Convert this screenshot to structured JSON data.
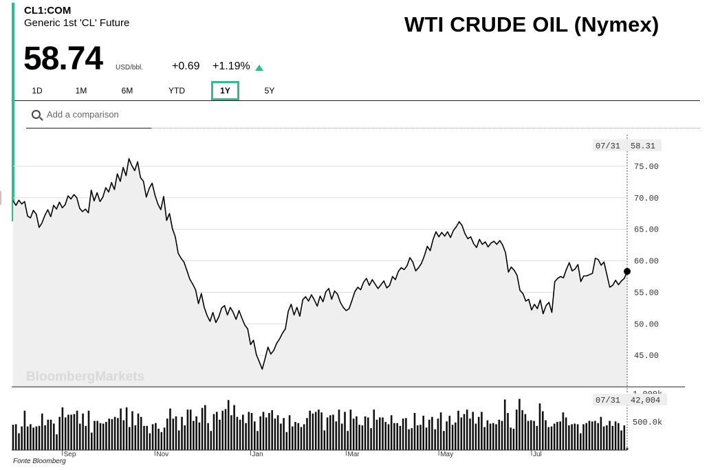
{
  "header": {
    "ticker": "CL1:COM",
    "name": "Generic 1st 'CL' Future",
    "headline": "WTI CRUDE OIL (Nymex)",
    "price": "58.74",
    "unit": "USD/bbl.",
    "change": "+0.69",
    "change_pct": "+1.19%",
    "direction_icon": "up-triangle-icon"
  },
  "tabs": [
    {
      "label": "1D",
      "active": false
    },
    {
      "label": "1M",
      "active": false
    },
    {
      "label": "6M",
      "active": false
    },
    {
      "label": "YTD",
      "active": false
    },
    {
      "label": "1Y",
      "active": true
    },
    {
      "label": "5Y",
      "active": false
    }
  ],
  "search": {
    "placeholder": "Add a comparison",
    "icon": "search-icon"
  },
  "watermark": "BloombergMarkets",
  "footer": "Fonte Bloomberg",
  "colors": {
    "accent": "#2ebd8f",
    "line": "#000000",
    "area": "#efefef",
    "grid": "#dddddd"
  },
  "chart_data": {
    "type": "line",
    "price": {
      "last_date": "07/31",
      "last_value": "58.31",
      "y_ticks": [
        "75.00",
        "70.00",
        "65.00",
        "60.00",
        "55.00",
        "50.00",
        "45.00"
      ],
      "ylim": [
        40,
        80
      ],
      "values": [
        69.5,
        68.8,
        69.6,
        69.0,
        69.4,
        67.1,
        66.8,
        68.0,
        67.4,
        65.3,
        66.0,
        67.2,
        68.1,
        67.0,
        68.8,
        68.2,
        69.3,
        68.4,
        68.9,
        70.3,
        69.8,
        70.5,
        70.0,
        68.3,
        67.8,
        68.2,
        67.6,
        71.2,
        69.5,
        70.8,
        69.4,
        70.1,
        71.6,
        70.9,
        72.4,
        71.3,
        73.8,
        72.6,
        74.8,
        73.5,
        76.2,
        75.1,
        74.3,
        75.7,
        73.2,
        72.6,
        70.1,
        71.5,
        72.3,
        70.4,
        69.0,
        68.1,
        70.2,
        66.4,
        67.5,
        65.1,
        63.8,
        61.2,
        60.4,
        59.8,
        58.5,
        57.1,
        56.3,
        55.4,
        53.2,
        54.8,
        52.6,
        51.3,
        50.4,
        51.8,
        50.2,
        51.1,
        52.5,
        52.9,
        51.4,
        52.6,
        51.8,
        50.7,
        52.1,
        50.9,
        49.8,
        49.2,
        46.7,
        47.4,
        45.1,
        44.0,
        42.8,
        44.5,
        46.3,
        45.2,
        45.8,
        46.9,
        47.6,
        48.5,
        49.2,
        52.0,
        53.1,
        51.4,
        52.6,
        51.2,
        53.8,
        54.3,
        53.6,
        54.6,
        53.8,
        52.8,
        54.4,
        53.5,
        55.1,
        55.6,
        53.9,
        55.2,
        54.7,
        53.4,
        52.6,
        52.1,
        52.4,
        53.7,
        55.1,
        55.8,
        55.4,
        56.6,
        57.2,
        56.1,
        57.0,
        56.3,
        55.6,
        56.2,
        56.8,
        55.7,
        56.1,
        57.5,
        57.0,
        58.3,
        58.9,
        58.6,
        59.2,
        60.5,
        59.8,
        58.4,
        58.9,
        59.6,
        60.8,
        62.3,
        61.6,
        63.4,
        64.6,
        63.8,
        64.5,
        63.9,
        64.6,
        63.7,
        64.8,
        65.4,
        66.2,
        65.6,
        64.3,
        63.5,
        63.8,
        62.7,
        62.1,
        63.4,
        62.6,
        63.0,
        62.2,
        62.8,
        63.1,
        62.6,
        63.2,
        62.5,
        61.3,
        58.2,
        59.0,
        58.5,
        57.7,
        55.3,
        54.8,
        53.6,
        53.9,
        52.2,
        53.1,
        52.4,
        53.8,
        51.6,
        52.9,
        53.4,
        51.8,
        56.7,
        57.2,
        57.5,
        57.3,
        58.6,
        59.7,
        58.4,
        58.7,
        59.4,
        56.7,
        57.6,
        57.6,
        57.8,
        58.0,
        60.4,
        60.2,
        59.3,
        59.8,
        57.8,
        55.8,
        56.1,
        56.9,
        56.2,
        56.8,
        57.2,
        58.31
      ],
      "title": "",
      "xlabel": "",
      "ylabel": ""
    },
    "volume": {
      "last_date": "07/31",
      "last_value": "42,004",
      "y_ticks": [
        "1,000k",
        "500.0k"
      ],
      "ylim": [
        0,
        1100000
      ],
      "values": [
        450000,
        460000,
        300000,
        420000,
        700000,
        420000,
        460000,
        400000,
        420000,
        430000,
        650000,
        440000,
        540000,
        540000,
        470000,
        280000,
        590000,
        760000,
        580000,
        630000,
        630000,
        640000,
        700000,
        470000,
        650000,
        430000,
        700000,
        310000,
        520000,
        520000,
        480000,
        470000,
        500000,
        560000,
        550000,
        590000,
        570000,
        740000,
        530000,
        760000,
        410000,
        690000,
        440000,
        650000,
        590000,
        430000,
        430000,
        300000,
        460000,
        480000,
        380000,
        320000,
        400000,
        560000,
        740000,
        560000,
        600000,
        350000,
        590000,
        440000,
        720000,
        720000,
        520000,
        600000,
        490000,
        750000,
        800000,
        480000,
        340000,
        640000,
        680000,
        540000,
        700000,
        730000,
        890000,
        620000,
        800000,
        590000,
        540000,
        630000,
        480000,
        680000,
        660000,
        510000,
        340000,
        600000,
        680000,
        580000,
        660000,
        710000,
        560000,
        620000,
        470000,
        570000,
        320000,
        620000,
        420000,
        500000,
        480000,
        410000,
        460000,
        570000,
        700000,
        650000,
        680000,
        720000,
        670000,
        350000,
        580000,
        620000,
        630000,
        510000,
        720000,
        470000,
        680000,
        340000,
        720000,
        560000,
        600000,
        450000,
        440000,
        600000,
        580000,
        390000,
        720000,
        540000,
        580000,
        580000,
        500000,
        460000,
        620000,
        480000,
        480000,
        430000,
        560000,
        570000,
        370000,
        390000,
        660000,
        440000,
        450000,
        610000,
        400000,
        540000,
        590000,
        370000,
        560000,
        670000,
        340000,
        510000,
        610000,
        450000,
        490000,
        700000,
        580000,
        640000,
        720000,
        560000,
        680000,
        470000,
        590000,
        680000,
        410000,
        530000,
        470000,
        480000,
        460000,
        540000,
        520000,
        900000,
        660000,
        400000,
        380000,
        720000,
        910000,
        710000,
        640000,
        520000,
        530000,
        520000,
        430000,
        830000,
        690000,
        530000,
        410000,
        420000,
        470000,
        500000,
        510000,
        670000,
        580000,
        440000,
        460000,
        470000,
        460000,
        300000,
        460000,
        480000,
        520000,
        510000,
        520000,
        480000,
        590000,
        420000,
        440000,
        520000,
        430000,
        510000,
        480000,
        350000,
        440000,
        42004
      ]
    },
    "x_ticks": [
      {
        "label": "Sep",
        "index": 17
      },
      {
        "label": "Nov",
        "index": 49
      },
      {
        "label": "Jan",
        "index": 82
      },
      {
        "label": "Mar",
        "index": 115
      },
      {
        "label": "May",
        "index": 147
      },
      {
        "label": "Jul",
        "index": 179
      }
    ],
    "grid": true
  }
}
